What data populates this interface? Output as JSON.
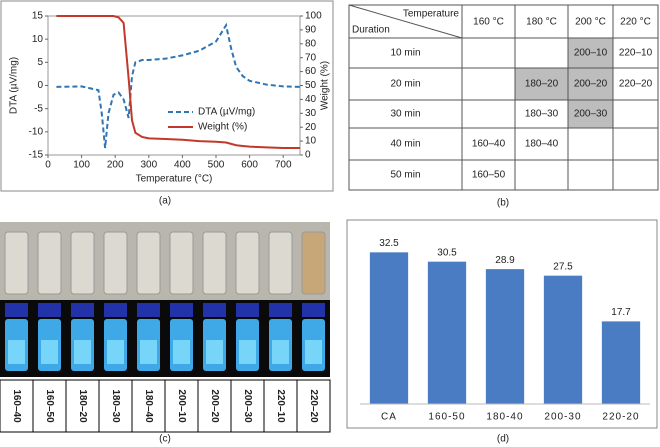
{
  "panel_labels": [
    "(a)",
    "(b)",
    "(c)",
    "(d)"
  ],
  "chart_data": [
    {
      "type": "line",
      "x_label": "Temperature (°C)",
      "y_label": "DTA (µV/mg)",
      "y2_label": "Weight (%)",
      "x": [
        25,
        100,
        150,
        160,
        170,
        180,
        195,
        210,
        225,
        240,
        250,
        260,
        280,
        300,
        350,
        400,
        450,
        500,
        530,
        545,
        560,
        580,
        600,
        650,
        700,
        750
      ],
      "series": [
        {
          "name": "DTA (µV/mg)",
          "color": "#2e75b6",
          "dashed": true,
          "values": [
            -0.3,
            -0.2,
            -1,
            -6,
            -13.5,
            -6,
            -2,
            -1.5,
            -3,
            -7,
            2,
            5,
            5.5,
            5.5,
            5.8,
            6.5,
            7.5,
            9.5,
            13,
            8,
            4,
            2,
            1,
            0.2,
            -0.2,
            -0.3
          ]
        },
        {
          "name": "Weight (%)",
          "color": "#c0392b",
          "axis": "y2",
          "values": [
            100,
            100,
            100,
            100,
            100,
            100,
            100,
            99,
            95,
            55,
            25,
            16,
            13,
            12,
            11.5,
            11,
            10,
            9.5,
            9,
            8,
            7,
            6.5,
            6,
            5.5,
            5,
            5
          ]
        }
      ],
      "xlim": [
        0,
        750
      ],
      "xticks": [
        0,
        100,
        200,
        300,
        400,
        500,
        600,
        700
      ],
      "ylim": [
        -15,
        15
      ],
      "yticks": [
        -15,
        -10,
        -5,
        0,
        5,
        10,
        15
      ],
      "y2lim": [
        0,
        100
      ],
      "y2ticks": [
        0,
        10,
        20,
        30,
        40,
        50,
        60,
        70,
        80,
        90,
        100
      ]
    },
    {
      "type": "bar",
      "categories": [
        "CA",
        "160-50",
        "180-40",
        "200-30",
        "220-20"
      ],
      "values": [
        32.5,
        30.5,
        28.9,
        27.5,
        17.7
      ],
      "color": "#4a7cc4",
      "ylim": [
        0,
        36
      ]
    }
  ],
  "table": {
    "corner_top": "Temperature",
    "corner_bottom": "Duration",
    "columns": [
      "160 °C",
      "180 °C",
      "200 °C",
      "220 °C"
    ],
    "rows": [
      {
        "label": "10 min",
        "cells": [
          null,
          null,
          "200–10",
          "220–10"
        ]
      },
      {
        "label": "20 min",
        "cells": [
          null,
          "180–20",
          "200–20",
          "220–20"
        ]
      },
      {
        "label": "30 min",
        "cells": [
          null,
          "180–30",
          "200–30",
          null
        ]
      },
      {
        "label": "40 min",
        "cells": [
          "160–40",
          "180–40",
          null,
          null
        ]
      },
      {
        "label": "50 min",
        "cells": [
          "160–50",
          null,
          null,
          null
        ]
      }
    ],
    "highlight": [
      [
        0,
        2
      ],
      [
        1,
        1
      ],
      [
        1,
        2
      ],
      [
        2,
        2
      ]
    ]
  },
  "photo": {
    "samples": [
      "160–40",
      "160–50",
      "180–20",
      "180–30",
      "180–40",
      "200–10",
      "200–20",
      "200–30",
      "220–10",
      "220–20"
    ]
  }
}
